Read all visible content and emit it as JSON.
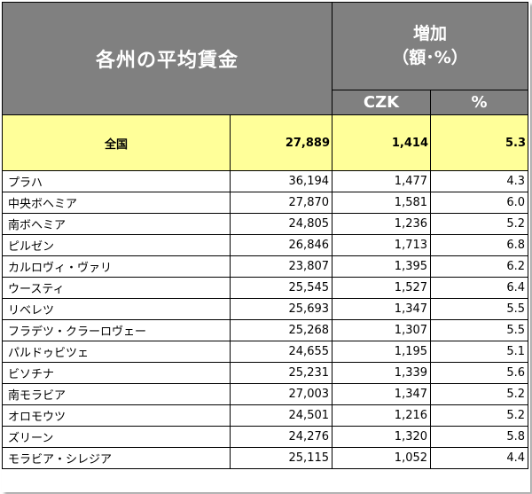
{
  "header": {
    "title": "各州の平均賃金",
    "increase_line1": "増加",
    "increase_line2": "（額･%）",
    "unit_czk": "CZK",
    "unit_pct": "%"
  },
  "national": {
    "label": "全国",
    "wage": "27,889",
    "inc_czk": "1,414",
    "inc_pct": "5.3"
  },
  "rows": [
    {
      "region": "プラハ",
      "wage": "36,194",
      "inc_czk": "1,477",
      "inc_pct": "4.3"
    },
    {
      "region": "中央ボヘミア",
      "wage": "27,870",
      "inc_czk": "1,581",
      "inc_pct": "6.0"
    },
    {
      "region": "南ボヘミア",
      "wage": "24,805",
      "inc_czk": "1,236",
      "inc_pct": "5.2"
    },
    {
      "region": "ピルゼン",
      "wage": "26,846",
      "inc_czk": "1,713",
      "inc_pct": "6.8"
    },
    {
      "region": "カルロヴィ・ヴァリ",
      "wage": "23,807",
      "inc_czk": "1,395",
      "inc_pct": "6.2"
    },
    {
      "region": "ウースティ",
      "wage": "25,545",
      "inc_czk": "1,527",
      "inc_pct": "6.4"
    },
    {
      "region": "リベレツ",
      "wage": "25,693",
      "inc_czk": "1,347",
      "inc_pct": "5.5"
    },
    {
      "region": "フラデツ・クラーロヴェー",
      "wage": "25,268",
      "inc_czk": "1,307",
      "inc_pct": "5.5"
    },
    {
      "region": "パルドゥビツェ",
      "wage": "24,655",
      "inc_czk": "1,195",
      "inc_pct": "5.1"
    },
    {
      "region": "ビソチナ",
      "wage": "25,231",
      "inc_czk": "1,339",
      "inc_pct": "5.6"
    },
    {
      "region": "南モラビア",
      "wage": "27,003",
      "inc_czk": "1,347",
      "inc_pct": "5.2"
    },
    {
      "region": "オロモウツ",
      "wage": "24,501",
      "inc_czk": "1,216",
      "inc_pct": "5.2"
    },
    {
      "region": "ズリーン",
      "wage": "24,276",
      "inc_czk": "1,320",
      "inc_pct": "5.8"
    },
    {
      "region": "モラビア・シレジア",
      "wage": "25,115",
      "inc_czk": "1,052",
      "inc_pct": "4.4"
    }
  ]
}
